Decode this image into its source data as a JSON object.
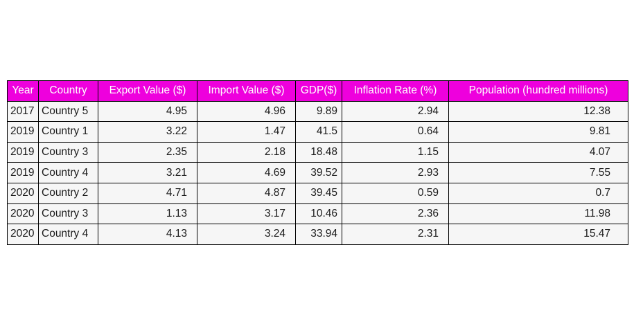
{
  "chart_data": {
    "type": "table",
    "header_color": "#ee00dd",
    "cell_color": "#f6f6f6",
    "columns": [
      "Year",
      "Country",
      "Export Value ($)",
      "Import Value ($)",
      "GDP($)",
      "Inflation Rate (%)",
      "Population (hundred millions)"
    ],
    "rows": [
      [
        "2017",
        "Country 5",
        "4.95",
        "4.96",
        "9.89",
        "2.94",
        "12.38"
      ],
      [
        "2019",
        "Country 1",
        "3.22",
        "1.47",
        "41.5",
        "0.64",
        "9.81"
      ],
      [
        "2019",
        "Country 3",
        "2.35",
        "2.18",
        "18.48",
        "1.15",
        "4.07"
      ],
      [
        "2019",
        "Country 4",
        "3.21",
        "4.69",
        "39.52",
        "2.93",
        "7.55"
      ],
      [
        "2020",
        "Country 2",
        "4.71",
        "4.87",
        "39.45",
        "0.59",
        "0.7"
      ],
      [
        "2020",
        "Country 3",
        "1.13",
        "3.17",
        "10.46",
        "2.36",
        "11.98"
      ],
      [
        "2020",
        "Country 4",
        "4.13",
        "3.24",
        "33.94",
        "2.31",
        "15.47"
      ]
    ]
  }
}
